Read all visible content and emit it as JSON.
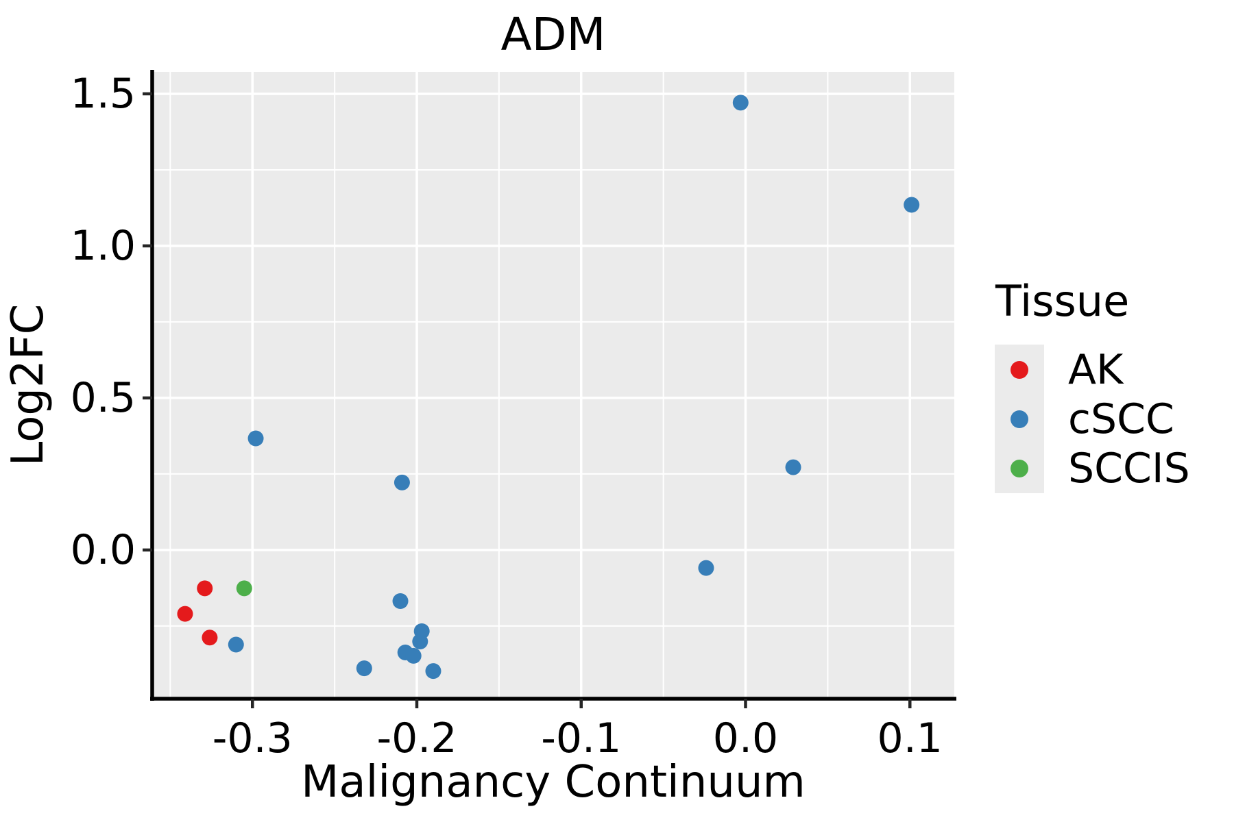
{
  "figure": {
    "title": "ADM"
  },
  "chart_data": {
    "type": "scatter",
    "title": "ADM",
    "xlabel": "Malignancy Continuum",
    "ylabel": "Log2FC",
    "xlim": [
      -0.361,
      0.127
    ],
    "ylim": [
      -0.489,
      1.572
    ],
    "x_major_ticks": [
      -0.3,
      -0.2,
      -0.1,
      0.0,
      0.1
    ],
    "x_tick_labels": [
      "-0.3",
      "-0.2",
      "-0.1",
      "0.0",
      "0.1"
    ],
    "x_minor_ticks": [
      -0.35,
      -0.25,
      -0.15,
      -0.05,
      0.05
    ],
    "y_major_ticks": [
      1.5,
      1.0,
      0.5,
      0.0
    ],
    "y_tick_labels": [
      "1.5",
      "1.0",
      "0.5",
      "0.0"
    ],
    "y_minor_ticks": [
      1.25,
      0.75,
      0.25,
      -0.25
    ],
    "grid": true,
    "panel_background": "#EBEBEB",
    "grid_color": "#FFFFFF",
    "axis_line_color": "#000000",
    "tick_color": "#262626",
    "legend_title": "Tissue",
    "legend_position": "right",
    "legend_key_background": "#EBEBEB",
    "series": [
      {
        "name": "AK",
        "color": "#E41A1C",
        "points": [
          [
            -0.329,
            -0.126
          ],
          [
            -0.341,
            -0.21
          ],
          [
            -0.326,
            -0.288
          ]
        ]
      },
      {
        "name": "cSCC",
        "color": "#377EB8",
        "points": [
          [
            -0.31,
            -0.311
          ],
          [
            -0.298,
            0.367
          ],
          [
            -0.209,
            0.222
          ],
          [
            -0.21,
            -0.168
          ],
          [
            -0.197,
            -0.267
          ],
          [
            -0.198,
            -0.301
          ],
          [
            -0.207,
            -0.337
          ],
          [
            -0.202,
            -0.348
          ],
          [
            -0.232,
            -0.389
          ],
          [
            -0.19,
            -0.398
          ],
          [
            -0.024,
            -0.059
          ],
          [
            0.029,
            0.272
          ],
          [
            -0.003,
            1.471
          ],
          [
            0.101,
            1.135
          ]
        ]
      },
      {
        "name": "SCCIS",
        "color": "#4DAF4A",
        "points": [
          [
            -0.305,
            -0.126
          ]
        ]
      }
    ]
  }
}
